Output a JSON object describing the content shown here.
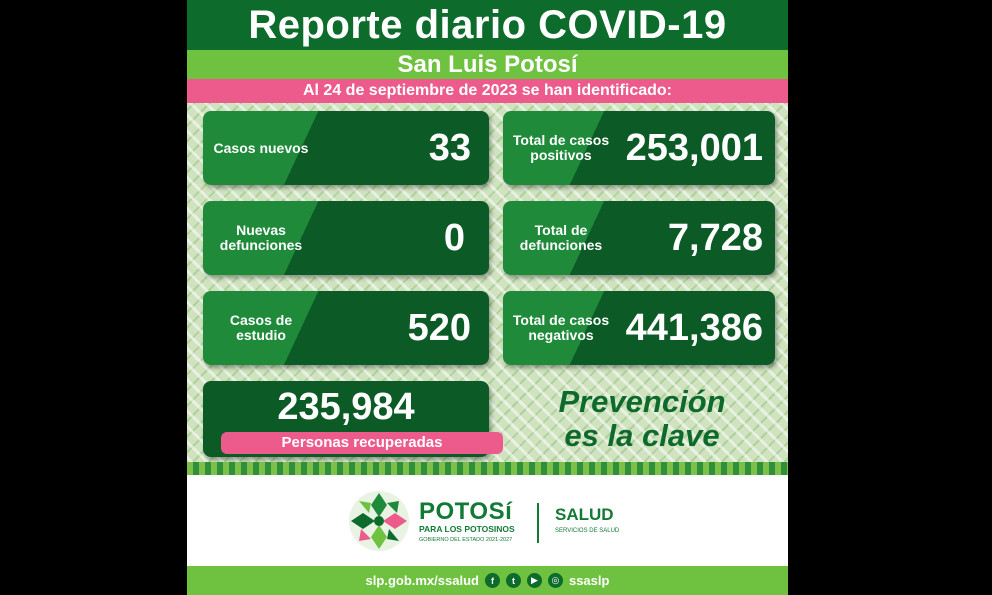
{
  "report": {
    "title": "Reporte diario COVID-19",
    "state": "San Luis Potosí",
    "date_line": "Al 24 de septiembre de 2023 se han identificado:"
  },
  "stats": {
    "casos_nuevos": {
      "label": "Casos nuevos",
      "value": "33"
    },
    "total_positivos": {
      "label": "Total de casos positivos",
      "value": "253,001"
    },
    "nuevas_defunciones": {
      "label": "Nuevas defunciones",
      "value": "0"
    },
    "total_defunciones": {
      "label": "Total de defunciones",
      "value": "7,728"
    },
    "casos_estudio": {
      "label": "Casos de estudio",
      "value": "520"
    },
    "total_negativos": {
      "label": "Total de casos negativos",
      "value": "441,386"
    },
    "recuperadas": {
      "label": "Personas recuperadas",
      "value": "235,984"
    }
  },
  "slogan": {
    "line1": "Prevención",
    "line2": "es la clave"
  },
  "branding": {
    "name": "POTOSí",
    "tagline": "PARA LOS POTOSINOS",
    "gov": "GOBIERNO DEL ESTADO 2021-2027",
    "dept": "SALUD",
    "dept_sub": "SERVICIOS DE SALUD"
  },
  "footer": {
    "website": "slp.gob.mx/ssalud",
    "handle": "ssaslp",
    "icons": [
      "facebook-icon",
      "twitter-icon",
      "youtube-icon",
      "instagram-icon"
    ]
  },
  "colors": {
    "dark_green": "#0d6b2c",
    "light_green": "#6fc23f",
    "pink": "#ec5b8c"
  }
}
